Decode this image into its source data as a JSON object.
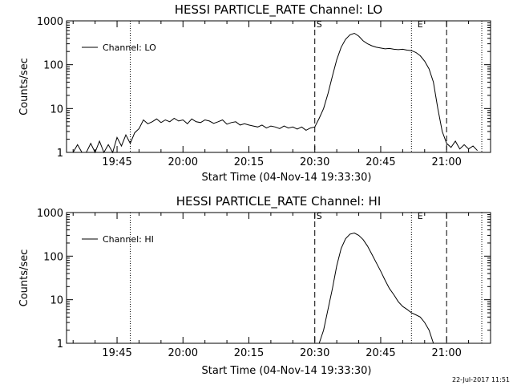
{
  "timestamp": "22-Jul-2017 11:51",
  "chart_data": [
    {
      "type": "line",
      "title": "HESSI PARTICLE_RATE Channel: LO",
      "xlabel": "Start Time (04-Nov-14 19:33:30)",
      "ylabel": "Counts/sec",
      "y_scale": "log",
      "ylim": [
        1,
        1000
      ],
      "xlim": [
        "19:33:30",
        "21:10:00"
      ],
      "x_tick_labels": [
        "19:45",
        "20:00",
        "20:15",
        "20:30",
        "20:45",
        "21:00"
      ],
      "y_tick_labels": [
        "1",
        "10",
        "100",
        "1000"
      ],
      "legend": "Channel: LO",
      "legend_position": "top-left",
      "markers": {
        "S": "20:30",
        "E": "20:53"
      },
      "vlines_dashed": [
        "20:30",
        "21:00"
      ],
      "vlines_dotted": [
        "19:48",
        "20:52",
        "21:08"
      ],
      "series": [
        {
          "name": "Channel: LO",
          "x": [
            "19:35",
            "19:36",
            "19:37",
            "19:38",
            "19:39",
            "19:40",
            "19:41",
            "19:42",
            "19:43",
            "19:44",
            "19:45",
            "19:46",
            "19:47",
            "19:48",
            "19:49",
            "19:50",
            "19:51",
            "19:52",
            "19:53",
            "19:54",
            "19:55",
            "19:56",
            "19:57",
            "19:58",
            "19:59",
            "20:00",
            "20:01",
            "20:02",
            "20:03",
            "20:04",
            "20:05",
            "20:06",
            "20:07",
            "20:08",
            "20:09",
            "20:10",
            "20:11",
            "20:12",
            "20:13",
            "20:14",
            "20:15",
            "20:16",
            "20:17",
            "20:18",
            "20:19",
            "20:20",
            "20:21",
            "20:22",
            "20:23",
            "20:24",
            "20:25",
            "20:26",
            "20:27",
            "20:28",
            "20:29",
            "20:30",
            "20:31",
            "20:32",
            "20:33",
            "20:34",
            "20:35",
            "20:36",
            "20:37",
            "20:38",
            "20:39",
            "20:40",
            "20:41",
            "20:42",
            "20:43",
            "20:44",
            "20:45",
            "20:46",
            "20:47",
            "20:48",
            "20:49",
            "20:50",
            "20:51",
            "20:52",
            "20:53",
            "20:54",
            "20:55",
            "20:56",
            "20:57",
            "20:58",
            "20:59",
            "21:00",
            "21:01",
            "21:02",
            "21:03",
            "21:04",
            "21:05",
            "21:06",
            "21:07"
          ],
          "values": [
            1,
            1.5,
            1,
            1,
            1.6,
            1,
            1.8,
            1,
            1.5,
            1,
            2.2,
            1.4,
            2.5,
            1.6,
            2.8,
            3.5,
            5.5,
            4.5,
            5,
            5.8,
            4.8,
            5.5,
            5,
            6,
            5.2,
            5.5,
            4.5,
            5.8,
            5,
            4.8,
            5.5,
            5.2,
            4.6,
            5,
            5.5,
            4.4,
            4.8,
            5,
            4.2,
            4.5,
            4.2,
            4,
            3.8,
            4.2,
            3.6,
            4,
            3.8,
            3.5,
            4,
            3.6,
            3.8,
            3.4,
            3.8,
            3.2,
            3.6,
            3.8,
            6,
            10,
            22,
            55,
            130,
            250,
            380,
            480,
            520,
            450,
            350,
            300,
            270,
            250,
            240,
            230,
            235,
            225,
            220,
            225,
            215,
            210,
            190,
            160,
            120,
            80,
            40,
            10,
            3,
            1.6,
            1.3,
            1.8,
            1.2,
            1.5,
            1.2,
            1.4,
            1.1
          ]
        }
      ]
    },
    {
      "type": "line",
      "title": "HESSI PARTICLE_RATE Channel: HI",
      "xlabel": "Start Time (04-Nov-14 19:33:30)",
      "ylabel": "Counts/sec",
      "y_scale": "log",
      "ylim": [
        1,
        1000
      ],
      "xlim": [
        "19:33:30",
        "21:10:00"
      ],
      "x_tick_labels": [
        "19:45",
        "20:00",
        "20:15",
        "20:30",
        "20:45",
        "21:00"
      ],
      "y_tick_labels": [
        "1",
        "10",
        "100",
        "1000"
      ],
      "legend": "Channel: HI",
      "legend_position": "top-left",
      "markers": {
        "S": "20:30",
        "E": "20:53"
      },
      "vlines_dashed": [
        "20:30",
        "21:00"
      ],
      "vlines_dotted": [
        "19:48",
        "20:52",
        "21:08"
      ],
      "series": [
        {
          "name": "Channel: HI",
          "x": [
            "20:31",
            "20:32",
            "20:33",
            "20:34",
            "20:35",
            "20:36",
            "20:37",
            "20:38",
            "20:39",
            "20:40",
            "20:41",
            "20:42",
            "20:43",
            "20:44",
            "20:45",
            "20:46",
            "20:47",
            "20:48",
            "20:49",
            "20:50",
            "20:51",
            "20:52",
            "20:53",
            "20:54",
            "20:55",
            "20:56",
            "20:57"
          ],
          "values": [
            1,
            2,
            6,
            18,
            60,
            150,
            250,
            320,
            340,
            300,
            240,
            170,
            110,
            70,
            45,
            28,
            18,
            13,
            9,
            7,
            6,
            5,
            4.5,
            4,
            3,
            2,
            1
          ]
        }
      ]
    }
  ]
}
